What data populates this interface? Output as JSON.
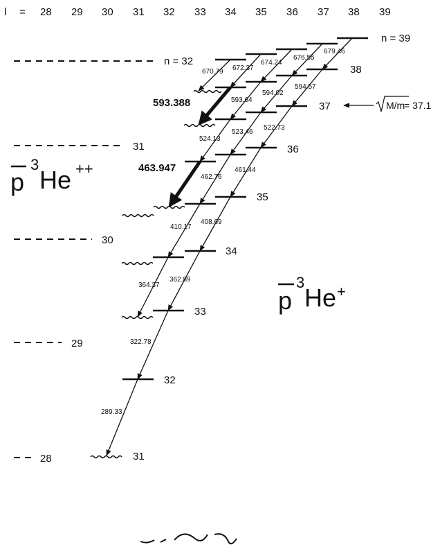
{
  "header": {
    "l_label": "l",
    "eq": "=",
    "l_values": [
      "28",
      "29",
      "30",
      "31",
      "32",
      "33",
      "34",
      "35",
      "36",
      "37",
      "38",
      "39"
    ]
  },
  "ion_levels": [
    {
      "label": "n = 32"
    },
    {
      "label": "31"
    },
    {
      "label": "30"
    },
    {
      "label": "29"
    },
    {
      "label": "28"
    }
  ],
  "state_labels": [
    "n = 39",
    "38",
    "37",
    "36",
    "35",
    "34",
    "33",
    "32",
    "31"
  ],
  "mass_annotation": {
    "sqrt_arg": "M/m",
    "value": "= 37.1"
  },
  "species_ion": {
    "pbar": "p",
    "sup": "3",
    "he": "He",
    "charge": "++"
  },
  "species_atom": {
    "pbar": "p",
    "sup": "3",
    "he": "He",
    "charge": "+"
  },
  "wavelengths_nm": {
    "large": [
      "593.388",
      "463.947"
    ],
    "small": [
      "670.79",
      "672.37",
      "674.24",
      "676.55",
      "679.46",
      "594.02",
      "594.57",
      "593.64",
      "523.46",
      "522.73",
      "524.13",
      "462.76",
      "461.44",
      "410.17",
      "408.69",
      "364.37",
      "362.89",
      "322.78",
      "289.33"
    ]
  },
  "colors": {
    "ink": "#111111",
    "background": "#ffffff"
  }
}
